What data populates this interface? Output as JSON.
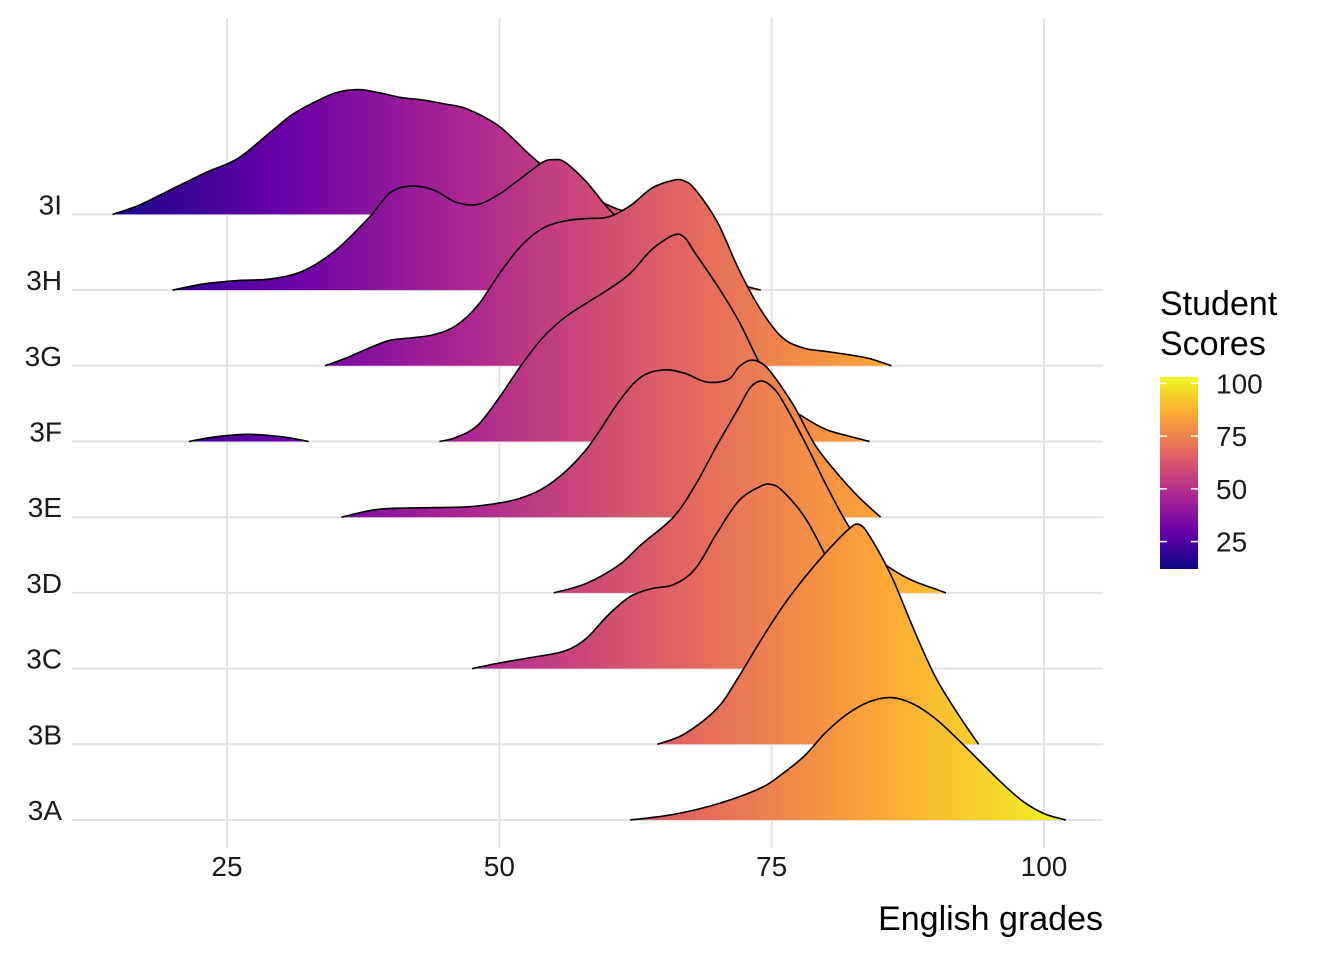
{
  "chart_data": {
    "type": "ridgeline",
    "xlabel": "English grades",
    "ylabel": "",
    "xlim": [
      10,
      106
    ],
    "x_ticks": [
      25,
      50,
      75,
      100
    ],
    "grid": true,
    "fill_scale": {
      "name": "plasma",
      "domain": [
        12,
        103
      ],
      "stops": [
        "#0d0887",
        "#6a00a8",
        "#b12a90",
        "#e16462",
        "#fca636",
        "#f0f921"
      ]
    },
    "legend": {
      "title_lines": [
        "Student",
        "Scores"
      ],
      "position": "right",
      "breaks": [
        100,
        75,
        50,
        25
      ]
    },
    "categories": [
      "3A",
      "3B",
      "3C",
      "3D",
      "3E",
      "3F",
      "3G",
      "3H",
      "3I"
    ],
    "series": [
      {
        "name": "3A",
        "points": [
          [
            62,
            0
          ],
          [
            66,
            0.07
          ],
          [
            70,
            0.2
          ],
          [
            74,
            0.4
          ],
          [
            76,
            0.58
          ],
          [
            78,
            0.8
          ],
          [
            80,
            1.1
          ],
          [
            82,
            1.33
          ],
          [
            84,
            1.48
          ],
          [
            86,
            1.53
          ],
          [
            88,
            1.45
          ],
          [
            90,
            1.27
          ],
          [
            92,
            1.02
          ],
          [
            94,
            0.75
          ],
          [
            96,
            0.48
          ],
          [
            98,
            0.24
          ],
          [
            100,
            0.08
          ],
          [
            102,
            0
          ]
        ]
      },
      {
        "name": "3B",
        "points": [
          [
            64.5,
            0
          ],
          [
            67,
            0.13
          ],
          [
            70,
            0.45
          ],
          [
            72,
            0.85
          ],
          [
            74,
            1.3
          ],
          [
            76,
            1.72
          ],
          [
            78,
            2.08
          ],
          [
            80,
            2.4
          ],
          [
            82,
            2.68
          ],
          [
            83,
            2.75
          ],
          [
            84,
            2.6
          ],
          [
            86,
            2.1
          ],
          [
            88,
            1.45
          ],
          [
            90,
            0.85
          ],
          [
            92,
            0.4
          ],
          [
            94,
            0
          ]
        ]
      },
      {
        "name": "3C",
        "points": [
          [
            47.5,
            0
          ],
          [
            50,
            0.07
          ],
          [
            53,
            0.14
          ],
          [
            56,
            0.22
          ],
          [
            58,
            0.38
          ],
          [
            60,
            0.67
          ],
          [
            62,
            0.9
          ],
          [
            64,
            1.0
          ],
          [
            66,
            1.05
          ],
          [
            68,
            1.25
          ],
          [
            70,
            1.7
          ],
          [
            72,
            2.1
          ],
          [
            74,
            2.28
          ],
          [
            75,
            2.3
          ],
          [
            76,
            2.22
          ],
          [
            78,
            1.9
          ],
          [
            80,
            1.4
          ],
          [
            82,
            0.85
          ],
          [
            84,
            0.4
          ],
          [
            86,
            0.15
          ],
          [
            88,
            0.05
          ],
          [
            89,
            0
          ]
        ]
      },
      {
        "name": "3D",
        "points": [
          [
            55,
            0
          ],
          [
            58,
            0.12
          ],
          [
            61,
            0.35
          ],
          [
            63,
            0.6
          ],
          [
            66,
            0.95
          ],
          [
            68,
            1.35
          ],
          [
            70,
            1.85
          ],
          [
            72,
            2.32
          ],
          [
            73,
            2.56
          ],
          [
            74,
            2.65
          ],
          [
            75,
            2.58
          ],
          [
            76,
            2.4
          ],
          [
            78,
            1.9
          ],
          [
            80,
            1.35
          ],
          [
            82,
            0.85
          ],
          [
            84,
            0.5
          ],
          [
            86,
            0.3
          ],
          [
            88,
            0.15
          ],
          [
            90,
            0.05
          ],
          [
            91,
            0
          ]
        ]
      },
      {
        "name": "3E",
        "points": [
          [
            35.5,
            0
          ],
          [
            38,
            0.08
          ],
          [
            40,
            0.11
          ],
          [
            44,
            0.12
          ],
          [
            48,
            0.14
          ],
          [
            52,
            0.24
          ],
          [
            55,
            0.45
          ],
          [
            58,
            0.85
          ],
          [
            61,
            1.45
          ],
          [
            63,
            1.75
          ],
          [
            65,
            1.84
          ],
          [
            67,
            1.8
          ],
          [
            69,
            1.69
          ],
          [
            71,
            1.72
          ],
          [
            72,
            1.88
          ],
          [
            73,
            1.96
          ],
          [
            74,
            1.93
          ],
          [
            75,
            1.8
          ],
          [
            77,
            1.4
          ],
          [
            79,
            0.9
          ],
          [
            81,
            0.55
          ],
          [
            83,
            0.25
          ],
          [
            85,
            0
          ]
        ]
      },
      {
        "name": "3F-low",
        "points": [
          [
            21.5,
            0
          ],
          [
            24,
            0.06
          ],
          [
            27,
            0.09
          ],
          [
            30,
            0.06
          ],
          [
            32.5,
            0
          ]
        ]
      },
      {
        "name": "3F",
        "points": [
          [
            44.5,
            0
          ],
          [
            46,
            0.05
          ],
          [
            48,
            0.2
          ],
          [
            50,
            0.55
          ],
          [
            52,
            0.95
          ],
          [
            54,
            1.3
          ],
          [
            56,
            1.55
          ],
          [
            58,
            1.73
          ],
          [
            60,
            1.9
          ],
          [
            62,
            2.1
          ],
          [
            64,
            2.4
          ],
          [
            66,
            2.58
          ],
          [
            67,
            2.55
          ],
          [
            68,
            2.35
          ],
          [
            70,
            1.95
          ],
          [
            72,
            1.5
          ],
          [
            74,
            0.95
          ],
          [
            76,
            0.5
          ],
          [
            78,
            0.3
          ],
          [
            80,
            0.15
          ],
          [
            82,
            0.07
          ],
          [
            84,
            0
          ]
        ]
      },
      {
        "name": "3G",
        "points": [
          [
            34,
            0
          ],
          [
            36,
            0.1
          ],
          [
            38,
            0.22
          ],
          [
            40,
            0.32
          ],
          [
            42,
            0.35
          ],
          [
            44,
            0.39
          ],
          [
            46,
            0.5
          ],
          [
            48,
            0.75
          ],
          [
            50,
            1.15
          ],
          [
            52,
            1.5
          ],
          [
            54,
            1.72
          ],
          [
            56,
            1.81
          ],
          [
            58,
            1.84
          ],
          [
            60,
            1.86
          ],
          [
            62,
            2.0
          ],
          [
            64,
            2.22
          ],
          [
            66,
            2.32
          ],
          [
            67,
            2.31
          ],
          [
            68,
            2.2
          ],
          [
            70,
            1.8
          ],
          [
            72,
            1.2
          ],
          [
            74,
            0.7
          ],
          [
            76,
            0.35
          ],
          [
            78,
            0.22
          ],
          [
            80,
            0.18
          ],
          [
            82,
            0.14
          ],
          [
            84,
            0.09
          ],
          [
            86,
            0
          ]
        ]
      },
      {
        "name": "3H",
        "points": [
          [
            20,
            0
          ],
          [
            23,
            0.08
          ],
          [
            26,
            0.12
          ],
          [
            29,
            0.14
          ],
          [
            32,
            0.24
          ],
          [
            35,
            0.5
          ],
          [
            38,
            0.9
          ],
          [
            40,
            1.22
          ],
          [
            42,
            1.3
          ],
          [
            44,
            1.25
          ],
          [
            46,
            1.1
          ],
          [
            48,
            1.07
          ],
          [
            50,
            1.2
          ],
          [
            52,
            1.4
          ],
          [
            54,
            1.6
          ],
          [
            55,
            1.63
          ],
          [
            56,
            1.6
          ],
          [
            58,
            1.35
          ],
          [
            60,
            1.02
          ],
          [
            62,
            0.75
          ],
          [
            64,
            0.55
          ],
          [
            66,
            0.4
          ],
          [
            68,
            0.25
          ],
          [
            70,
            0.14
          ],
          [
            72,
            0.07
          ],
          [
            74,
            0
          ]
        ]
      },
      {
        "name": "3I",
        "points": [
          [
            14.5,
            0
          ],
          [
            17,
            0.12
          ],
          [
            20,
            0.32
          ],
          [
            23,
            0.52
          ],
          [
            26,
            0.7
          ],
          [
            29,
            1.03
          ],
          [
            31,
            1.25
          ],
          [
            33,
            1.4
          ],
          [
            35,
            1.52
          ],
          [
            37,
            1.56
          ],
          [
            39,
            1.52
          ],
          [
            41,
            1.46
          ],
          [
            43,
            1.43
          ],
          [
            45,
            1.38
          ],
          [
            47,
            1.32
          ],
          [
            50,
            1.1
          ],
          [
            53,
            0.72
          ],
          [
            56,
            0.4
          ],
          [
            59,
            0.18
          ],
          [
            61,
            0.06
          ],
          [
            63,
            0
          ]
        ]
      }
    ]
  }
}
